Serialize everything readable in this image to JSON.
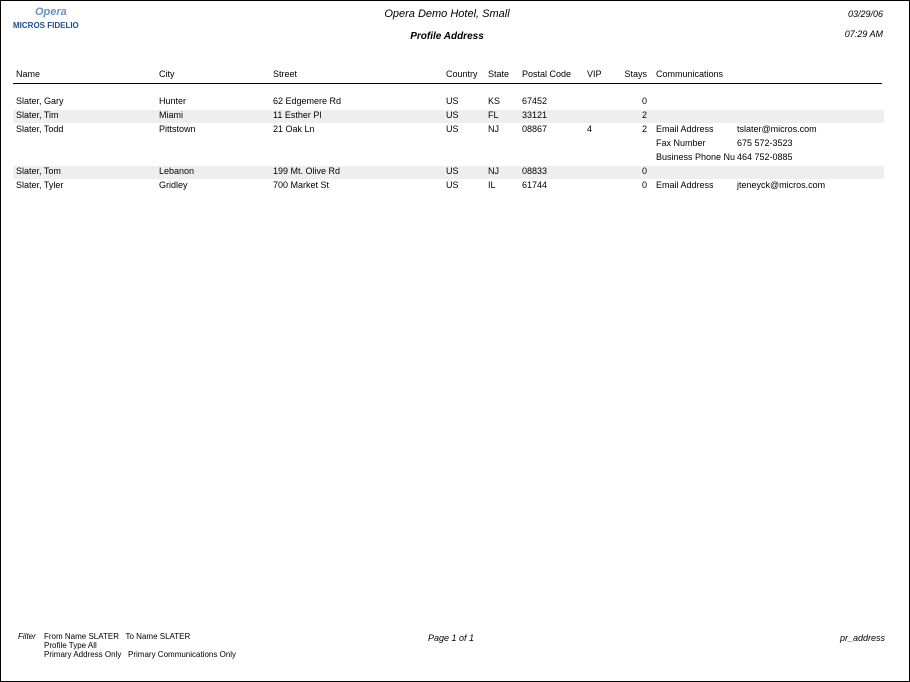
{
  "header": {
    "logo": "Opera",
    "logo_brand": "MICROS FIDELIO",
    "hotel": "Opera Demo Hotel, Small",
    "title": "Profile Address",
    "date": "03/29/06",
    "time": "07:29 AM"
  },
  "table": {
    "columns": [
      "Name",
      "City",
      "Street",
      "Country",
      "State",
      "Postal Code",
      "VIP",
      "Stays",
      "Communications"
    ],
    "rows": [
      {
        "name": "Slater, Gary",
        "city": "Hunter",
        "street": "62 Edgemere Rd",
        "country": "US",
        "state": "KS",
        "postal": "67452",
        "stays": 0
      },
      {
        "name": "Slater, Tim",
        "city": "Miami",
        "street": "11 Esther Pl",
        "country": "US",
        "state": "FL",
        "postal": "33121",
        "stays": 2
      },
      {
        "name": "Slater, Todd",
        "city": "Pittstown",
        "street": "21 Oak Ln",
        "country": "US",
        "state": "NJ",
        "postal": "08867",
        "vip": 4,
        "stays": 2,
        "communications": [
          [
            "Email Address",
            "tslater@micros.com"
          ],
          [
            "Fax Number",
            "675 572-3523"
          ],
          [
            "Business Phone Nu",
            "464 752-0885"
          ]
        ]
      },
      {
        "name": "Slater, Tom",
        "city": "Lebanon",
        "street": "199 Mt. Olive Rd",
        "country": "US",
        "state": "NJ",
        "postal": "08833",
        "stays": 0
      },
      {
        "name": "Slater, Tyler",
        "city": "Gridley",
        "street": "700 Market St",
        "country": "US",
        "state": "IL",
        "postal": "61744",
        "stays": 0,
        "communications": [
          [
            "Email Address",
            "jteneyck@micros.com"
          ]
        ]
      }
    ]
  },
  "footer": {
    "filter_label": "Filter",
    "filters": [
      "From Name SLATER   To Name SLATER",
      "Profile Type All",
      "Primary Address Only   Primary Communications Only"
    ],
    "page": "Page 1 of 1",
    "report": "pr_address"
  }
}
